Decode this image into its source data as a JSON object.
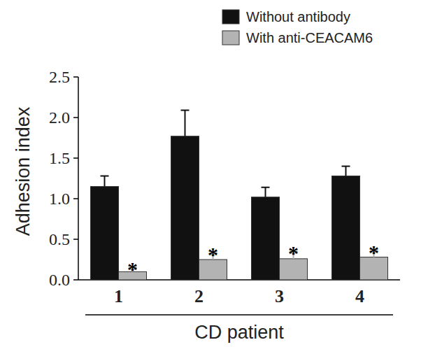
{
  "chart_data": {
    "type": "bar",
    "categories": [
      "1",
      "2",
      "3",
      "4"
    ],
    "series": [
      {
        "name": "Without antibody",
        "color": "#111111",
        "values": [
          1.15,
          1.77,
          1.02,
          1.28
        ],
        "errors": [
          0.13,
          0.32,
          0.12,
          0.12
        ]
      },
      {
        "name": "With anti-CEACAM6",
        "color": "#b3b3b3",
        "values": [
          0.1,
          0.25,
          0.26,
          0.28
        ],
        "errors": [
          0.03,
          0.06,
          0.07,
          0.06
        ]
      }
    ],
    "y_label": "Adhesion index",
    "x_label": "CD patient",
    "ylim": [
      0,
      2.5
    ],
    "yticks": [
      {
        "value": 0,
        "label": "0.0"
      },
      0.5,
      {
        "value": 1,
        "label": "1.0"
      },
      1.5,
      {
        "value": 2,
        "label": "2.0"
      },
      2.5
    ],
    "legend": "top-right",
    "annotations": [
      {
        "text": "*",
        "category": "1",
        "series": "With anti-CEACAM6"
      },
      {
        "text": "*",
        "category": "2",
        "series": "With anti-CEACAM6"
      },
      {
        "text": "*",
        "category": "3",
        "series": "With anti-CEACAM6"
      },
      {
        "text": "*",
        "category": "4",
        "series": "With anti-CEACAM6"
      }
    ]
  }
}
